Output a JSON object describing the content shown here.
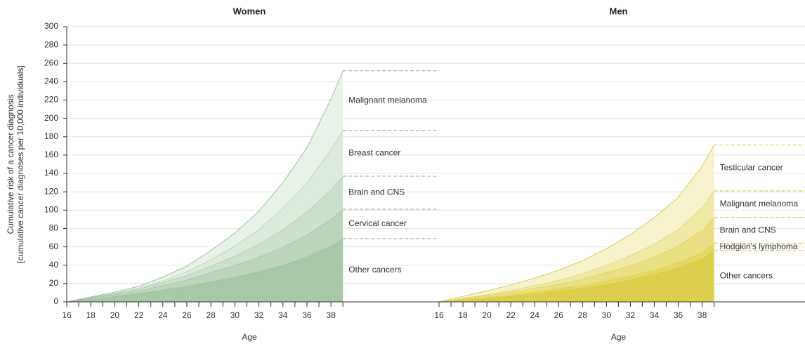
{
  "chart_data": [
    {
      "type": "area",
      "title": "Women",
      "xlabel": "Age",
      "ylabel": [
        "Cumulative risk of a cancer diagnosis",
        "[cumulative cancer diagnoses per 10,000 individuals]"
      ],
      "x": [
        16,
        18,
        20,
        22,
        24,
        26,
        28,
        30,
        32,
        34,
        36,
        38,
        39
      ],
      "xlim": [
        16,
        47
      ],
      "xticks": [
        16,
        18,
        20,
        22,
        24,
        26,
        28,
        30,
        32,
        34,
        36,
        38
      ],
      "xminorticks": [
        17,
        19,
        21,
        23,
        25,
        27,
        29,
        31,
        33,
        35,
        37,
        39
      ],
      "ylim": [
        0,
        300
      ],
      "yticks": [
        0,
        20,
        40,
        60,
        80,
        100,
        120,
        140,
        160,
        180,
        200,
        220,
        240,
        260,
        280,
        300
      ],
      "grid": true,
      "line_color": "#8fb58f",
      "label_color": "#79a979",
      "series": [
        {
          "name": "Other cancers",
          "color": "#a9c7a9",
          "values": [
            0,
            3,
            6,
            9,
            13,
            17,
            22,
            27,
            33,
            40,
            49,
            61,
            69
          ]
        },
        {
          "name": "Cervical cancer",
          "color": "#bcd4bc",
          "values": [
            0,
            1,
            2,
            3,
            5,
            7,
            10,
            13,
            16,
            20,
            24,
            29,
            32
          ]
        },
        {
          "name": "Brain and CNS",
          "color": "#cde0cd",
          "values": [
            0,
            0.5,
            1,
            2,
            3,
            5,
            7,
            10,
            14,
            19,
            25,
            32,
            36
          ]
        },
        {
          "name": "Breast cancer",
          "color": "#dcebdc",
          "values": [
            0,
            0.3,
            0.6,
            1,
            2,
            4,
            7,
            11,
            16,
            23,
            32,
            44,
            50
          ]
        },
        {
          "name": "Malignant melanoma",
          "color": "#e9f2e9",
          "values": [
            0,
            0.5,
            1,
            2,
            4,
            6,
            10,
            14,
            20,
            28,
            38,
            55,
            65
          ]
        }
      ]
    },
    {
      "type": "area",
      "title": "Men",
      "xlabel": "Age",
      "x": [
        16,
        18,
        20,
        22,
        24,
        26,
        28,
        30,
        32,
        34,
        36,
        38,
        39
      ],
      "xlim": [
        16,
        46.6
      ],
      "xticks": [
        16,
        18,
        20,
        22,
        24,
        26,
        28,
        30,
        32,
        34,
        36,
        38
      ],
      "xminorticks": [
        17,
        19,
        21,
        23,
        25,
        27,
        29,
        31,
        33,
        35,
        37,
        39
      ],
      "ylim": [
        0,
        300
      ],
      "yticks": [
        0,
        20,
        40,
        60,
        80,
        100,
        120,
        140,
        160,
        180,
        200,
        220,
        240,
        260,
        280,
        300
      ],
      "grid": true,
      "line_color": "#d6c433",
      "label_color": "#d2bb28",
      "series": [
        {
          "name": "Other cancers",
          "color": "#dccf4c",
          "values": [
            0,
            2,
            4,
            6,
            9,
            12,
            15,
            19,
            24,
            30,
            37,
            47,
            56
          ]
        },
        {
          "name": "Hodgkin's lymphoma",
          "color": "#e3d866",
          "values": [
            0,
            0.5,
            1,
            1.5,
            2,
            2.5,
            3,
            4,
            4.5,
            5,
            6,
            7,
            8
          ]
        },
        {
          "name": "Brain and CNS",
          "color": "#e9e084",
          "values": [
            0,
            1,
            2,
            3,
            4,
            5,
            7,
            9,
            11,
            14,
            18,
            24,
            28
          ]
        },
        {
          "name": "Malignant melanoma",
          "color": "#efe9a6",
          "values": [
            0,
            0.5,
            1,
            2,
            3,
            4,
            6,
            8,
            11,
            14,
            18,
            25,
            29
          ]
        },
        {
          "name": "Testicular cancer",
          "color": "#f6f2cb",
          "values": [
            0,
            2,
            4,
            6,
            8,
            11,
            14,
            18,
            23,
            29,
            35,
            45,
            50
          ]
        }
      ]
    }
  ]
}
